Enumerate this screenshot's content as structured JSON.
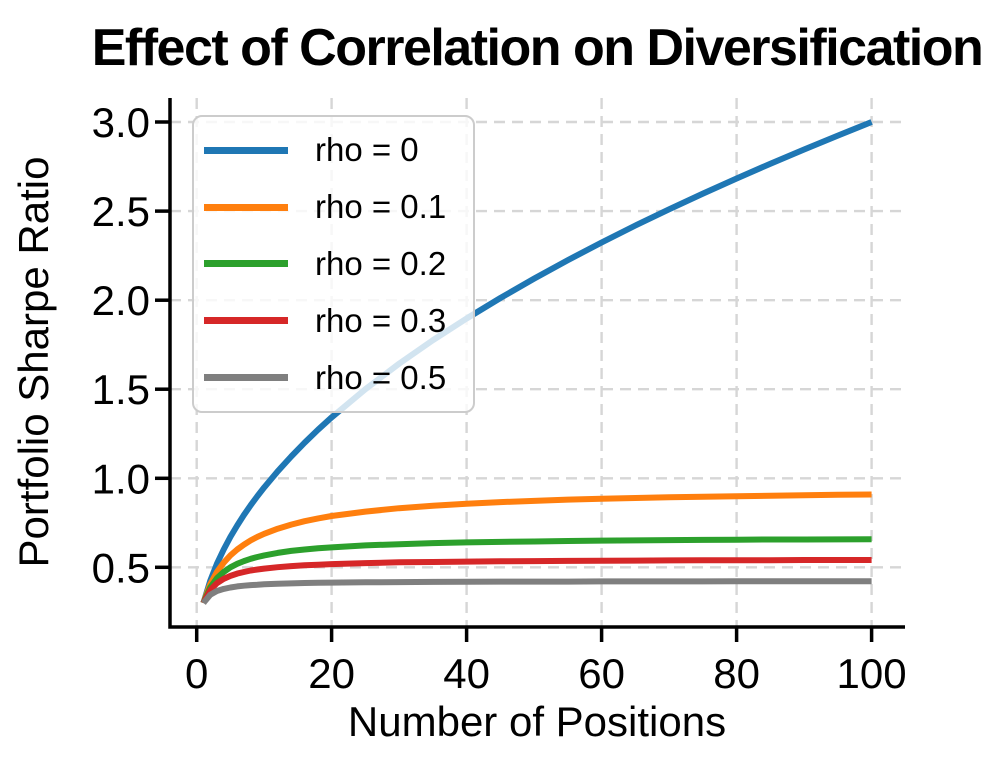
{
  "chart_data": {
    "type": "line",
    "title": "Effect of Correlation on Diversification",
    "xlabel": "Number of Positions",
    "ylabel": "Portfolio Sharpe Ratio",
    "xlim": [
      -3.95,
      104.95
    ],
    "ylim": [
      0.165,
      3.135
    ],
    "xticks": {
      "values": [
        0,
        20,
        40,
        60,
        80,
        100
      ],
      "labels": [
        "0",
        "20",
        "40",
        "60",
        "80",
        "100"
      ]
    },
    "yticks": {
      "values": [
        0.5,
        1.0,
        1.5,
        2.0,
        2.5,
        3.0
      ],
      "labels": [
        "0.5",
        "1.0",
        "1.5",
        "2.0",
        "2.5",
        "3.0"
      ]
    },
    "grid": true,
    "grid_color": "#d6d6d6",
    "axis_color": "#000000",
    "legend": {
      "position": "upper left",
      "border_color": "#cccccc",
      "background": "rgba(255,255,255,0.8)"
    },
    "x": [
      1,
      2,
      3,
      4,
      5,
      6,
      7,
      8,
      9,
      10,
      12,
      14,
      16,
      18,
      20,
      25,
      30,
      35,
      40,
      45,
      50,
      55,
      60,
      65,
      70,
      75,
      80,
      85,
      90,
      95,
      100
    ],
    "series": [
      {
        "name": "rho = 0",
        "rho": 0,
        "color": "#1f77b4",
        "values": [
          0.3,
          0.424,
          0.52,
          0.6,
          0.671,
          0.735,
          0.794,
          0.849,
          0.9,
          0.949,
          1.039,
          1.122,
          1.2,
          1.273,
          1.342,
          1.5,
          1.643,
          1.775,
          1.897,
          2.012,
          2.121,
          2.225,
          2.324,
          2.419,
          2.51,
          2.598,
          2.683,
          2.766,
          2.846,
          2.924,
          3.0
        ]
      },
      {
        "name": "rho = 0.1",
        "rho": 0.1,
        "color": "#ff7f0e",
        "values": [
          0.3,
          0.405,
          0.474,
          0.526,
          0.567,
          0.6,
          0.627,
          0.651,
          0.671,
          0.688,
          0.717,
          0.74,
          0.759,
          0.775,
          0.788,
          0.813,
          0.832,
          0.846,
          0.857,
          0.866,
          0.873,
          0.88,
          0.885,
          0.889,
          0.893,
          0.896,
          0.899,
          0.902,
          0.905,
          0.907,
          0.909
        ]
      },
      {
        "name": "rho = 0.2",
        "rho": 0.2,
        "color": "#2ca02c",
        "values": [
          0.3,
          0.387,
          0.439,
          0.474,
          0.5,
          0.52,
          0.535,
          0.548,
          0.558,
          0.567,
          0.581,
          0.592,
          0.6,
          0.607,
          0.612,
          0.623,
          0.63,
          0.636,
          0.64,
          0.643,
          0.645,
          0.648,
          0.65,
          0.651,
          0.653,
          0.654,
          0.655,
          0.656,
          0.656,
          0.657,
          0.658
        ]
      },
      {
        "name": "rho = 0.3",
        "rho": 0.3,
        "color": "#d62728",
        "values": [
          0.3,
          0.372,
          0.411,
          0.435,
          0.452,
          0.465,
          0.474,
          0.482,
          0.488,
          0.493,
          0.501,
          0.507,
          0.512,
          0.515,
          0.518,
          0.524,
          0.528,
          0.53,
          0.532,
          0.534,
          0.535,
          0.536,
          0.537,
          0.538,
          0.539,
          0.54,
          0.54,
          0.54,
          0.541,
          0.541,
          0.541
        ]
      },
      {
        "name": "rho = 0.5",
        "rho": 0.5,
        "color": "#7f7f7f",
        "values": [
          0.3,
          0.346,
          0.367,
          0.379,
          0.387,
          0.393,
          0.397,
          0.4,
          0.402,
          0.405,
          0.408,
          0.41,
          0.412,
          0.413,
          0.414,
          0.416,
          0.417,
          0.418,
          0.419,
          0.42,
          0.42,
          0.42,
          0.421,
          0.421,
          0.421,
          0.421,
          0.422,
          0.422,
          0.422,
          0.422,
          0.422
        ]
      }
    ]
  }
}
